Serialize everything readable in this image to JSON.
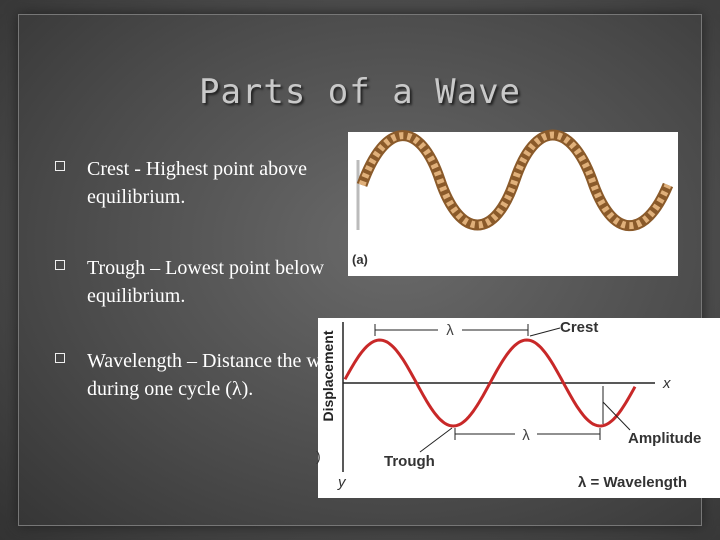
{
  "title": "Parts of a Wave",
  "bullets": [
    "Crest  - Highest point above equilibrium.",
    "Trough – Lowest point below equilibrium.",
    "Wavelength – Distance the wave travels during one cycle (λ)."
  ],
  "rope_figure": {
    "label": "(a)"
  },
  "wave_figure": {
    "axis_y_label": "Displacement",
    "axis_x": "x",
    "axis_y": "y",
    "crest": "Crest",
    "trough": "Trough",
    "amplitude": "Amplitude",
    "lambda_top": "λ",
    "lambda_bottom": "λ",
    "legend": "λ = Wavelength",
    "cut_label": ")"
  }
}
